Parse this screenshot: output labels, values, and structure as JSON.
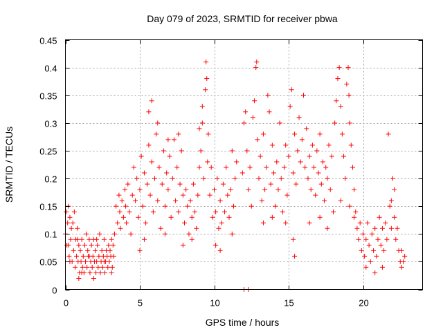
{
  "chart_data": {
    "type": "scatter",
    "title": "Day 079 of 2023, SRMTID for receiver pbwa",
    "xlabel": "GPS time / hours",
    "ylabel": "SRMTID / TECUs",
    "xlim": [
      0,
      24
    ],
    "ylim": [
      0,
      0.45
    ],
    "xticks": [
      0,
      5,
      10,
      15,
      20
    ],
    "xtick_labels": [
      "0",
      "5",
      "10",
      "15",
      "20"
    ],
    "yticks": [
      0,
      0.05,
      0.1,
      0.15,
      0.2,
      0.25,
      0.3,
      0.35,
      0.4,
      0.45
    ],
    "ytick_labels": [
      "0",
      "0.05",
      "0.1",
      "0.15",
      "0.2",
      "0.25",
      "0.3",
      "0.35",
      "0.4",
      "0.45"
    ],
    "grid": true,
    "marker": "+",
    "color": "#ff0000",
    "series": [
      {
        "name": "pbwa",
        "points": [
          [
            0.0,
            0.1
          ],
          [
            0.05,
            0.14
          ],
          [
            0.1,
            0.08
          ],
          [
            0.15,
            0.12
          ],
          [
            0.2,
            0.15
          ],
          [
            0.25,
            0.06
          ],
          [
            0.3,
            0.13
          ],
          [
            0.35,
            0.09
          ],
          [
            0.4,
            0.11
          ],
          [
            0.45,
            0.05
          ],
          [
            0.5,
            0.12
          ],
          [
            0.55,
            0.07
          ],
          [
            0.6,
            0.14
          ],
          [
            0.65,
            0.04
          ],
          [
            0.7,
            0.09
          ],
          [
            0.75,
            0.06
          ],
          [
            0.8,
            0.11
          ],
          [
            0.85,
            0.05
          ],
          [
            0.9,
            0.08
          ],
          [
            0.95,
            0.03
          ],
          [
            1.0,
            0.07
          ],
          [
            1.05,
            0.05
          ],
          [
            1.1,
            0.09
          ],
          [
            1.15,
            0.04
          ],
          [
            1.2,
            0.06
          ],
          [
            1.25,
            0.03
          ],
          [
            1.3,
            0.08
          ],
          [
            1.35,
            0.05
          ],
          [
            1.4,
            0.1
          ],
          [
            1.45,
            0.04
          ],
          [
            1.5,
            0.07
          ],
          [
            1.55,
            0.06
          ],
          [
            1.6,
            0.09
          ],
          [
            1.65,
            0.03
          ],
          [
            1.7,
            0.05
          ],
          [
            1.75,
            0.08
          ],
          [
            1.8,
            0.04
          ],
          [
            1.85,
            0.06
          ],
          [
            1.9,
            0.09
          ],
          [
            1.95,
            0.05
          ],
          [
            2.0,
            0.07
          ],
          [
            2.05,
            0.03
          ],
          [
            2.1,
            0.05
          ],
          [
            2.15,
            0.08
          ],
          [
            2.2,
            0.04
          ],
          [
            2.25,
            0.06
          ],
          [
            2.3,
            0.1
          ],
          [
            2.35,
            0.03
          ],
          [
            2.4,
            0.05
          ],
          [
            2.45,
            0.07
          ],
          [
            2.5,
            0.04
          ],
          [
            2.55,
            0.06
          ],
          [
            2.6,
            0.09
          ],
          [
            2.65,
            0.03
          ],
          [
            2.7,
            0.05
          ],
          [
            2.75,
            0.07
          ],
          [
            2.8,
            0.06
          ],
          [
            2.85,
            0.04
          ],
          [
            2.9,
            0.08
          ],
          [
            2.95,
            0.05
          ],
          [
            3.0,
            0.07
          ],
          [
            3.05,
            0.06
          ],
          [
            3.1,
            0.09
          ],
          [
            3.15,
            0.04
          ],
          [
            3.2,
            0.08
          ],
          [
            3.25,
            0.06
          ],
          [
            0.3,
            0.05
          ],
          [
            0.8,
            0.09
          ],
          [
            1.1,
            0.03
          ],
          [
            1.6,
            0.06
          ],
          [
            2.1,
            0.09
          ],
          [
            2.6,
            0.05
          ],
          [
            3.1,
            0.03
          ],
          [
            0.2,
            0.08
          ],
          [
            0.9,
            0.02
          ],
          [
            1.9,
            0.02
          ],
          [
            3.3,
            0.1
          ],
          [
            3.4,
            0.15
          ],
          [
            3.5,
            0.12
          ],
          [
            3.6,
            0.17
          ],
          [
            3.65,
            0.14
          ],
          [
            3.7,
            0.11
          ],
          [
            3.8,
            0.16
          ],
          [
            3.9,
            0.13
          ],
          [
            4.0,
            0.18
          ],
          [
            4.05,
            0.15
          ],
          [
            4.1,
            0.12
          ],
          [
            4.2,
            0.19
          ],
          [
            4.3,
            0.14
          ],
          [
            4.4,
            0.1
          ],
          [
            4.5,
            0.17
          ],
          [
            4.6,
            0.22
          ],
          [
            4.7,
            0.16
          ],
          [
            4.8,
            0.2
          ],
          [
            4.9,
            0.13
          ],
          [
            5.0,
            0.18
          ],
          [
            5.1,
            0.24
          ],
          [
            5.2,
            0.15
          ],
          [
            5.3,
            0.21
          ],
          [
            5.4,
            0.12
          ],
          [
            5.5,
            0.19
          ],
          [
            5.6,
            0.26
          ],
          [
            5.7,
            0.17
          ],
          [
            5.8,
            0.23
          ],
          [
            5.9,
            0.14
          ],
          [
            6.0,
            0.2
          ],
          [
            6.1,
            0.28
          ],
          [
            6.2,
            0.16
          ],
          [
            6.3,
            0.22
          ],
          [
            6.4,
            0.11
          ],
          [
            6.5,
            0.19
          ],
          [
            6.6,
            0.25
          ],
          [
            6.7,
            0.15
          ],
          [
            6.8,
            0.21
          ],
          [
            6.9,
            0.18
          ],
          [
            7.0,
            0.24
          ],
          [
            7.1,
            0.13
          ],
          [
            7.2,
            0.2
          ],
          [
            7.3,
            0.27
          ],
          [
            7.4,
            0.16
          ],
          [
            7.5,
            0.22
          ],
          [
            7.6,
            0.14
          ],
          [
            7.7,
            0.19
          ],
          [
            7.8,
            0.25
          ],
          [
            7.9,
            0.17
          ],
          [
            8.0,
            0.12
          ],
          [
            8.1,
            0.18
          ],
          [
            8.2,
            0.15
          ],
          [
            8.3,
            0.1
          ],
          [
            8.4,
            0.16
          ],
          [
            8.5,
            0.13
          ],
          [
            8.6,
            0.19
          ],
          [
            8.7,
            0.14
          ],
          [
            8.8,
            0.11
          ],
          [
            8.9,
            0.17
          ],
          [
            9.0,
            0.22
          ],
          [
            5.6,
            0.32
          ],
          [
            5.8,
            0.34
          ],
          [
            6.2,
            0.3
          ],
          [
            6.9,
            0.27
          ],
          [
            7.6,
            0.28
          ],
          [
            5.0,
            0.07
          ],
          [
            5.3,
            0.09
          ],
          [
            6.7,
            0.1
          ],
          [
            7.9,
            0.08
          ],
          [
            8.5,
            0.09
          ],
          [
            9.1,
            0.25
          ],
          [
            9.2,
            0.3
          ],
          [
            9.3,
            0.2
          ],
          [
            9.4,
            0.36
          ],
          [
            9.45,
            0.41
          ],
          [
            9.5,
            0.38
          ],
          [
            9.55,
            0.23
          ],
          [
            9.6,
            0.28
          ],
          [
            9.7,
            0.17
          ],
          [
            9.8,
            0.22
          ],
          [
            9.9,
            0.13
          ],
          [
            10.0,
            0.18
          ],
          [
            10.1,
            0.14
          ],
          [
            10.2,
            0.2
          ],
          [
            10.3,
            0.11
          ],
          [
            10.4,
            0.16
          ],
          [
            10.5,
            0.12
          ],
          [
            10.6,
            0.19
          ],
          [
            10.7,
            0.14
          ],
          [
            10.8,
            0.22
          ],
          [
            10.9,
            0.17
          ],
          [
            11.0,
            0.13
          ],
          [
            11.1,
            0.18
          ],
          [
            11.2,
            0.25
          ],
          [
            11.3,
            0.15
          ],
          [
            11.4,
            0.2
          ],
          [
            11.5,
            0.23
          ],
          [
            9.0,
            0.29
          ],
          [
            9.2,
            0.33
          ],
          [
            10.1,
            0.08
          ],
          [
            10.4,
            0.07
          ],
          [
            11.2,
            0.1
          ],
          [
            12.0,
            0.0
          ],
          [
            12.3,
            0.0
          ],
          [
            11.9,
            0.21
          ],
          [
            12.0,
            0.3
          ],
          [
            12.1,
            0.32
          ],
          [
            12.2,
            0.25
          ],
          [
            12.3,
            0.18
          ],
          [
            12.4,
            0.22
          ],
          [
            12.5,
            0.15
          ],
          [
            12.6,
            0.31
          ],
          [
            12.7,
            0.34
          ],
          [
            12.8,
            0.4
          ],
          [
            12.85,
            0.41
          ],
          [
            12.9,
            0.27
          ],
          [
            13.0,
            0.2
          ],
          [
            13.1,
            0.24
          ],
          [
            13.2,
            0.16
          ],
          [
            13.3,
            0.28
          ],
          [
            13.4,
            0.18
          ],
          [
            13.5,
            0.22
          ],
          [
            13.6,
            0.35
          ],
          [
            13.7,
            0.32
          ],
          [
            13.8,
            0.19
          ],
          [
            13.9,
            0.26
          ],
          [
            14.0,
            0.21
          ],
          [
            14.1,
            0.15
          ],
          [
            14.2,
            0.23
          ],
          [
            14.3,
            0.18
          ],
          [
            14.4,
            0.3
          ],
          [
            14.5,
            0.2
          ],
          [
            14.6,
            0.14
          ],
          [
            14.7,
            0.22
          ],
          [
            14.8,
            0.26
          ],
          [
            14.9,
            0.17
          ],
          [
            15.0,
            0.24
          ],
          [
            15.1,
            0.33
          ],
          [
            15.2,
            0.36
          ],
          [
            15.3,
            0.21
          ],
          [
            15.4,
            0.28
          ],
          [
            15.5,
            0.19
          ],
          [
            15.6,
            0.25
          ],
          [
            15.7,
            0.31
          ],
          [
            15.8,
            0.23
          ],
          [
            15.9,
            0.27
          ],
          [
            16.0,
            0.35
          ],
          [
            16.1,
            0.22
          ],
          [
            16.2,
            0.29
          ],
          [
            16.3,
            0.2
          ],
          [
            16.4,
            0.24
          ],
          [
            16.5,
            0.18
          ],
          [
            16.6,
            0.26
          ],
          [
            16.7,
            0.22
          ],
          [
            16.8,
            0.17
          ],
          [
            16.9,
            0.25
          ],
          [
            17.0,
            0.21
          ],
          [
            17.1,
            0.28
          ],
          [
            17.2,
            0.19
          ],
          [
            17.3,
            0.23
          ],
          [
            17.4,
            0.16
          ],
          [
            17.5,
            0.22
          ],
          [
            17.6,
            0.2
          ],
          [
            17.7,
            0.26
          ],
          [
            17.8,
            0.18
          ],
          [
            17.9,
            0.24
          ],
          [
            18.0,
            0.14
          ],
          [
            13.3,
            0.12
          ],
          [
            13.9,
            0.13
          ],
          [
            14.8,
            0.12
          ],
          [
            15.3,
            0.09
          ],
          [
            15.4,
            0.06
          ],
          [
            16.4,
            0.12
          ],
          [
            17.1,
            0.13
          ],
          [
            17.6,
            0.11
          ],
          [
            18.1,
            0.3
          ],
          [
            18.2,
            0.34
          ],
          [
            18.3,
            0.38
          ],
          [
            18.4,
            0.4
          ],
          [
            18.5,
            0.33
          ],
          [
            18.6,
            0.28
          ],
          [
            18.7,
            0.24
          ],
          [
            18.8,
            0.2
          ],
          [
            18.9,
            0.37
          ],
          [
            19.0,
            0.4
          ],
          [
            19.05,
            0.35
          ],
          [
            19.1,
            0.3
          ],
          [
            19.2,
            0.26
          ],
          [
            19.3,
            0.22
          ],
          [
            19.4,
            0.18
          ],
          [
            19.5,
            0.14
          ],
          [
            19.6,
            0.11
          ],
          [
            19.7,
            0.09
          ],
          [
            19.8,
            0.12
          ],
          [
            19.9,
            0.07
          ],
          [
            20.0,
            0.1
          ],
          [
            20.1,
            0.06
          ],
          [
            20.2,
            0.09
          ],
          [
            20.3,
            0.12
          ],
          [
            20.4,
            0.08
          ],
          [
            20.5,
            0.05
          ],
          [
            20.6,
            0.1
          ],
          [
            20.7,
            0.07
          ],
          [
            20.8,
            0.11
          ],
          [
            20.9,
            0.06
          ],
          [
            21.0,
            0.09
          ],
          [
            21.1,
            0.13
          ],
          [
            21.2,
            0.08
          ],
          [
            21.3,
            0.11
          ],
          [
            21.4,
            0.07
          ],
          [
            21.5,
            0.12
          ],
          [
            21.6,
            0.09
          ],
          [
            21.7,
            0.28
          ],
          [
            21.8,
            0.15
          ],
          [
            21.9,
            0.11
          ],
          [
            22.0,
            0.2
          ],
          [
            22.1,
            0.13
          ],
          [
            22.2,
            0.09
          ],
          [
            22.3,
            0.11
          ],
          [
            22.4,
            0.07
          ],
          [
            22.5,
            0.05
          ],
          [
            22.6,
            0.07
          ],
          [
            22.7,
            0.05
          ],
          [
            22.8,
            0.06
          ],
          [
            18.5,
            0.16
          ],
          [
            19.1,
            0.15
          ],
          [
            19.4,
            0.13
          ],
          [
            20.2,
            0.04
          ],
          [
            20.8,
            0.03
          ],
          [
            21.3,
            0.04
          ],
          [
            21.9,
            0.16
          ],
          [
            22.1,
            0.18
          ],
          [
            22.6,
            0.04
          ]
        ]
      }
    ]
  }
}
